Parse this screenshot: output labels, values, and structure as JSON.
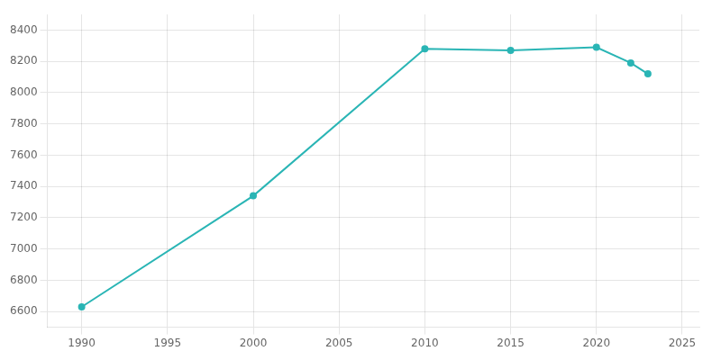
{
  "chart_data": {
    "type": "line",
    "x": [
      1990,
      2000,
      2010,
      2015,
      2020,
      2022,
      2023
    ],
    "values": [
      6630,
      7340,
      8280,
      8270,
      8290,
      8190,
      8120
    ],
    "color": "#2ab5b5",
    "marker": "circle",
    "xlim": [
      1988,
      2026
    ],
    "xticks": [
      1990,
      1995,
      2000,
      2005,
      2010,
      2015,
      2020,
      2025
    ],
    "ylim": [
      6500,
      8500
    ],
    "yticks": [
      6600,
      6800,
      7000,
      7200,
      7400,
      7600,
      7800,
      8000,
      8200,
      8400
    ],
    "grid": true
  }
}
